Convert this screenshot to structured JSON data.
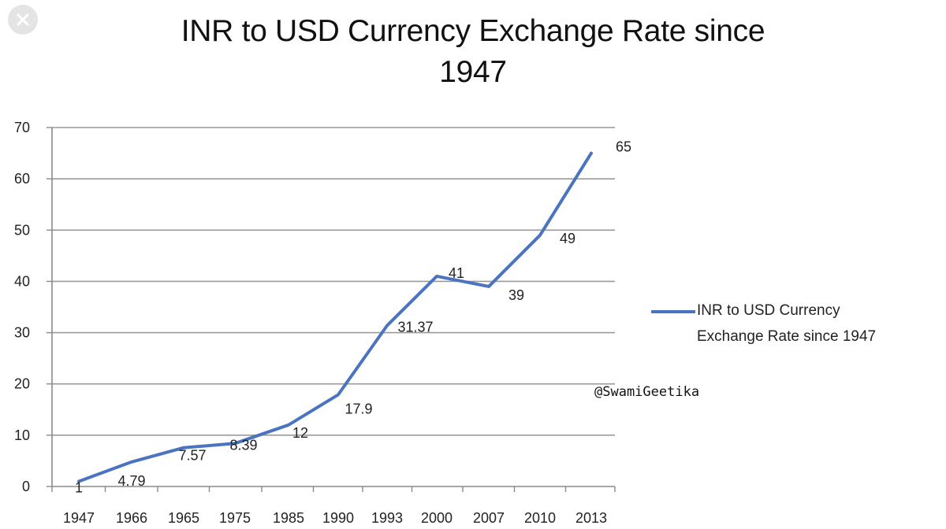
{
  "chart_data": {
    "type": "line",
    "title_line1": "INR to USD Currency Exchange Rate since",
    "title_line2": "1947",
    "categories": [
      "1947",
      "1966",
      "1965",
      "1975",
      "1985",
      "1990",
      "1993",
      "2000",
      "2007",
      "2010",
      "2013"
    ],
    "series": [
      {
        "name": "INR to USD Currency Exchange Rate since 1947",
        "values": [
          1,
          4.79,
          7.57,
          8.39,
          12,
          17.9,
          31.37,
          41,
          39,
          49,
          65
        ],
        "data_labels": [
          "1",
          "4.79",
          "7.57",
          "8.39",
          "12",
          "17.9",
          "31.37",
          "41",
          "39",
          "49",
          "65"
        ]
      }
    ],
    "y_ticks": [
      "0",
      "10",
      "20",
      "30",
      "40",
      "50",
      "60",
      "70"
    ],
    "ylim": [
      0,
      70
    ],
    "xlabel": "",
    "ylabel": "",
    "grid": true,
    "legend_position": "right",
    "legend_line1": "INR to USD Currency",
    "legend_line2": "Exchange Rate since 1947",
    "watermark": "@SwamiGeetika",
    "line_color": "#4a74c0",
    "grid_color": "#9a9a9a"
  }
}
